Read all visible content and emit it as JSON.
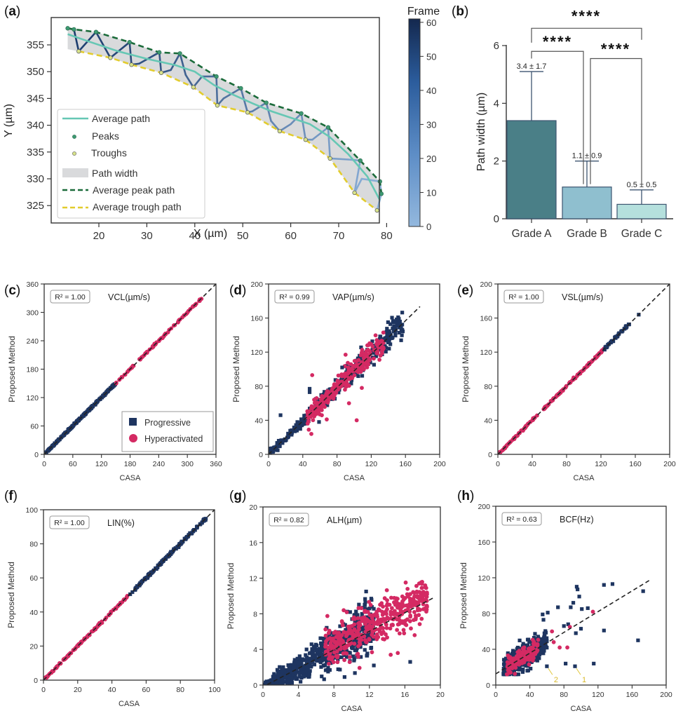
{
  "figure": {
    "panel_labels": [
      "a",
      "b",
      "c",
      "d",
      "e",
      "f",
      "g",
      "h"
    ]
  },
  "chart_data": [
    {
      "id": "a",
      "type": "line",
      "title": "",
      "xlabel": "X (µm)",
      "ylabel": "Y (µm)",
      "xlim": [
        11,
        82
      ],
      "ylim": [
        321.3,
        359.6
      ],
      "xticks": [
        20,
        30,
        40,
        50,
        60,
        70,
        80
      ],
      "yticks": [
        325,
        330,
        335,
        340,
        345,
        350,
        355
      ],
      "grid": false,
      "legend_position": "lower-left",
      "legend": [
        "Average path",
        "Peaks",
        "Troughs",
        "Path width",
        "Average peak path",
        "Average trough path"
      ],
      "colorbar": {
        "label": "Frame",
        "range": [
          0,
          61
        ],
        "ticks": [
          0,
          10,
          20,
          30,
          40,
          50,
          60
        ],
        "colors": [
          "#8fb4dd",
          "#1a3a6b"
        ]
      },
      "colors": {
        "average_path": "#66c7b4",
        "peaks": "#3d9a72",
        "troughs": "#d8e38a",
        "path_width": "#d9dadc",
        "peak_path": "#1b6b3a",
        "trough_path": "#e2cc2e"
      },
      "peaks": [
        [
          13.5,
          358.1
        ],
        [
          14.8,
          357.9
        ],
        [
          19.4,
          357.4
        ],
        [
          26.4,
          355.5
        ],
        [
          32.6,
          353.6
        ],
        [
          36.9,
          353.4
        ],
        [
          44.5,
          349.1
        ],
        [
          49.6,
          346.9
        ],
        [
          54.9,
          344.2
        ],
        [
          62.2,
          342.2
        ],
        [
          67.8,
          339.6
        ],
        [
          74.5,
          333.4
        ],
        [
          78.6,
          329.5
        ],
        [
          78.9,
          327.2
        ]
      ],
      "troughs": [
        [
          15.8,
          353.8
        ],
        [
          22.4,
          352.6
        ],
        [
          26.8,
          351.3
        ],
        [
          33.0,
          349.8
        ],
        [
          39.7,
          347.1
        ],
        [
          44.7,
          343.7
        ],
        [
          51.0,
          342.4
        ],
        [
          57.7,
          338.9
        ],
        [
          63.1,
          337.3
        ],
        [
          68.2,
          333.8
        ],
        [
          73.3,
          327.4
        ],
        [
          78.0,
          324.1
        ]
      ],
      "average_path": [
        [
          13.5,
          357.0
        ],
        [
          18,
          355.6
        ],
        [
          24,
          353.8
        ],
        [
          30,
          352.4
        ],
        [
          36,
          351.2
        ],
        [
          40,
          350.0
        ],
        [
          44,
          347.5
        ],
        [
          48,
          345.7
        ],
        [
          52,
          344.1
        ],
        [
          56,
          342.6
        ],
        [
          60,
          341.4
        ],
        [
          64,
          340.2
        ],
        [
          68,
          337.9
        ],
        [
          72,
          334.6
        ],
        [
          76,
          330.4
        ],
        [
          78.6,
          326.0
        ]
      ],
      "trajectory": [
        [
          13.5,
          358.1
        ],
        [
          14.8,
          357.9
        ],
        [
          15.8,
          353.8
        ],
        [
          19.4,
          357.4
        ],
        [
          22.4,
          352.6
        ],
        [
          26.4,
          355.5
        ],
        [
          26.8,
          351.3
        ],
        [
          28.4,
          351.5
        ],
        [
          32.6,
          353.6
        ],
        [
          33.0,
          349.8
        ],
        [
          35,
          350.3
        ],
        [
          36.9,
          353.4
        ],
        [
          38.1,
          349.4
        ],
        [
          39.7,
          347.1
        ],
        [
          41.5,
          349.1
        ],
        [
          44.5,
          349.1
        ],
        [
          44.7,
          343.7
        ],
        [
          46,
          345
        ],
        [
          49.6,
          346.9
        ],
        [
          51.0,
          342.4
        ],
        [
          52,
          342.6
        ],
        [
          54.9,
          344.2
        ],
        [
          55.9,
          340.8
        ],
        [
          57.7,
          338.9
        ],
        [
          60,
          340.2
        ],
        [
          62.2,
          342.2
        ],
        [
          63.1,
          337.3
        ],
        [
          64.5,
          337.3
        ],
        [
          67.8,
          339.6
        ],
        [
          68.2,
          333.8
        ],
        [
          72,
          333.6
        ],
        [
          74.5,
          333.4
        ],
        [
          73.3,
          327.4
        ],
        [
          74.8,
          330.0
        ],
        [
          78.6,
          329.5
        ],
        [
          78.9,
          327.2
        ],
        [
          78.0,
          324.1
        ]
      ]
    },
    {
      "id": "b",
      "type": "bar",
      "title": "",
      "xlabel": "",
      "ylabel": "Path width (µm)",
      "ylim": [
        0,
        6
      ],
      "yticks": [
        0,
        2,
        4,
        6
      ],
      "categories": [
        "Grade A",
        "Grade B",
        "Grade C"
      ],
      "values": [
        3.4,
        1.1,
        0.5
      ],
      "errors": [
        1.7,
        0.9,
        0.5
      ],
      "value_labels": [
        "3.4 ± 1.7",
        "1.1 ± 0.9",
        "0.5 ± 0.5"
      ],
      "colors": [
        "#4a7f87",
        "#8fbfcf",
        "#b5e0dd"
      ],
      "significance": [
        {
          "pair": [
            "Grade A",
            "Grade B"
          ],
          "label": "****"
        },
        {
          "pair": [
            "Grade B",
            "Grade C"
          ],
          "label": "****"
        },
        {
          "pair": [
            "Grade A",
            "Grade C"
          ],
          "label": "****"
        }
      ]
    },
    {
      "id": "c",
      "type": "scatter",
      "metric": "VCL(µm/s)",
      "r2_label": "R² = 1.00",
      "xlabel": "CASA",
      "ylabel": "Proposed Method",
      "xlim": [
        0,
        360
      ],
      "ylim": [
        0,
        360
      ],
      "xticks": [
        0,
        60,
        120,
        180,
        240,
        300,
        360
      ],
      "yticks": [
        0,
        60,
        120,
        180,
        240,
        300,
        360
      ],
      "legend": [
        "Progressive",
        "Hyperactivated"
      ],
      "legend_position": "lower-right",
      "series": [
        {
          "name": "Progressive",
          "marker": "square",
          "color": "#1e3560",
          "range": [
            2,
            150
          ],
          "spread": 0.8,
          "n": 220
        },
        {
          "name": "Hyperactivated",
          "marker": "circle",
          "color": "#d42a63",
          "range": [
            150,
            333
          ],
          "spread": 1.0,
          "n": 80
        }
      ],
      "fit": {
        "slope": 1.0,
        "intercept": 0,
        "x_range": [
          0,
          360
        ]
      }
    },
    {
      "id": "d",
      "type": "scatter",
      "metric": "VAP(µm/s)",
      "r2_label": "R² = 0.99",
      "xlabel": "CASA",
      "ylabel": "Proposed Method",
      "xlim": [
        0,
        200
      ],
      "ylim": [
        0,
        200
      ],
      "xticks": [
        0,
        40,
        80,
        120,
        160,
        200
      ],
      "yticks": [
        0,
        40,
        80,
        120,
        160,
        200
      ],
      "series": [
        {
          "name": "Progressive",
          "marker": "square",
          "color": "#1e3560",
          "range": [
            1,
            157
          ],
          "spread": 4.5,
          "n": 420
        },
        {
          "name": "Hyperactivated",
          "marker": "circle",
          "color": "#d42a63",
          "range": [
            45,
            135
          ],
          "spread": 5.5,
          "n": 260
        }
      ],
      "outliers": [
        [
          14,
          46,
          "p"
        ],
        [
          48,
          77,
          "p"
        ],
        [
          48,
          73,
          "p"
        ],
        [
          59,
          38,
          "p"
        ],
        [
          86,
          102,
          "p"
        ],
        [
          51,
          93,
          "h"
        ],
        [
          103,
          40,
          "h"
        ],
        [
          94,
          60,
          "h"
        ],
        [
          68,
          41,
          "h"
        ],
        [
          50,
          24,
          "h"
        ],
        [
          47,
          29,
          "h"
        ],
        [
          109,
          78,
          "h"
        ],
        [
          90,
          117,
          "h"
        ]
      ],
      "fit": {
        "slope": 0.98,
        "intercept": 0,
        "x_range": [
          0,
          177
        ]
      }
    },
    {
      "id": "e",
      "type": "scatter",
      "metric": "VSL(µm/s)",
      "r2_label": "R² = 1.00",
      "xlabel": "CASA",
      "ylabel": "Proposed Method",
      "xlim": [
        0,
        200
      ],
      "ylim": [
        0,
        200
      ],
      "xticks": [
        0,
        40,
        80,
        120,
        160,
        200
      ],
      "yticks": [
        0,
        40,
        80,
        120,
        160,
        200
      ],
      "series": [
        {
          "name": "Hyperactivated",
          "marker": "circle",
          "color": "#d42a63",
          "range": [
            2,
            124
          ],
          "spread": 0.6,
          "n": 160
        },
        {
          "name": "Progressive",
          "marker": "square",
          "color": "#1e3560",
          "range": [
            124,
            153
          ],
          "spread": 0.6,
          "n": 40
        }
      ],
      "outliers": [
        [
          164,
          164,
          "p"
        ]
      ],
      "fit": {
        "slope": 1.0,
        "intercept": 0,
        "x_range": [
          0,
          200
        ]
      }
    },
    {
      "id": "f",
      "type": "scatter",
      "metric": "LIN(%)",
      "r2_label": "R² = 1.00",
      "xlabel": "CASA",
      "ylabel": "Proposed Method",
      "xlim": [
        0,
        100
      ],
      "ylim": [
        0,
        100
      ],
      "xticks": [
        0,
        20,
        40,
        60,
        80,
        100
      ],
      "yticks": [
        0,
        20,
        40,
        60,
        80,
        100
      ],
      "series": [
        {
          "name": "Hyperactivated",
          "marker": "circle",
          "color": "#d42a63",
          "range": [
            1,
            50
          ],
          "spread": 0.3,
          "n": 120
        },
        {
          "name": "Progressive",
          "marker": "square",
          "color": "#1e3560",
          "range": [
            50,
            95
          ],
          "spread": 0.35,
          "n": 160
        }
      ],
      "fit": {
        "slope": 1.0,
        "intercept": 0,
        "x_range": [
          0,
          100
        ]
      }
    },
    {
      "id": "g",
      "type": "scatter",
      "metric": "ALH(µm)",
      "r2_label": "R² = 0.82",
      "xlabel": "CASA",
      "ylabel": "Proposed Method",
      "xlim": [
        0,
        20
      ],
      "ylim": [
        0,
        20
      ],
      "xticks": [
        0,
        4,
        8,
        12,
        16,
        20
      ],
      "yticks": [
        0,
        4,
        8,
        12,
        16,
        20
      ],
      "series": [
        {
          "name": "Progressive",
          "marker": "square",
          "color": "#1e3560",
          "range": [
            0.2,
            12.5
          ],
          "spread": 0.9,
          "n": 700
        },
        {
          "name": "Hyperactivated",
          "marker": "circle",
          "color": "#d42a63",
          "range": [
            7,
            18.5
          ],
          "spread": 1.1,
          "n": 420
        }
      ],
      "outliers": [
        [
          16.6,
          2.6,
          "p"
        ],
        [
          12.5,
          2.2,
          "p"
        ],
        [
          9.2,
          0.9,
          "p"
        ],
        [
          17.9,
          10.9,
          "h"
        ],
        [
          18.4,
          10.9,
          "h"
        ],
        [
          16.3,
          10.8,
          "h"
        ],
        [
          15.2,
          3.6,
          "h"
        ],
        [
          14.4,
          3.4,
          "h"
        ],
        [
          9.1,
          8.4,
          "h"
        ],
        [
          17.1,
          5.6,
          "h"
        ]
      ],
      "fit": {
        "slope": 0.52,
        "intercept": -0.2,
        "x_range": [
          0.5,
          19.2
        ]
      }
    },
    {
      "id": "h",
      "type": "scatter",
      "metric": "BCF(Hz)",
      "r2_label": "R² = 0.63",
      "xlabel": "CASA",
      "ylabel": "Proposed Method",
      "xlim": [
        0,
        200
      ],
      "ylim": [
        0,
        200
      ],
      "xticks": [
        0,
        40,
        80,
        120,
        160,
        200
      ],
      "yticks": [
        0,
        40,
        80,
        120,
        160,
        200
      ],
      "series": [
        {
          "name": "Progressive",
          "marker": "square",
          "color": "#1e3560",
          "range": [
            9,
            60
          ],
          "spread": 7,
          "n": 420
        },
        {
          "name": "Hyperactivated",
          "marker": "circle",
          "color": "#d42a63",
          "range": [
            13,
            50
          ],
          "spread": 5,
          "n": 160
        }
      ],
      "outliers": [
        [
          60,
          21,
          "p"
        ],
        [
          93,
          21,
          "p"
        ],
        [
          115,
          24,
          "p"
        ],
        [
          82,
          24,
          "p"
        ],
        [
          167,
          50,
          "p"
        ],
        [
          127,
          61,
          "p"
        ],
        [
          173,
          105,
          "p"
        ],
        [
          127,
          112,
          "p"
        ],
        [
          137,
          113,
          "p"
        ],
        [
          95,
          110,
          "p"
        ],
        [
          96,
          107,
          "p"
        ],
        [
          98,
          99,
          "p"
        ],
        [
          108,
          86,
          "p"
        ],
        [
          101,
          85,
          "p"
        ],
        [
          88,
          87,
          "p"
        ],
        [
          91,
          92,
          "p"
        ],
        [
          73,
          87,
          "p"
        ],
        [
          61,
          81,
          "p"
        ],
        [
          55,
          79,
          "p"
        ],
        [
          56,
          73,
          "p"
        ],
        [
          100,
          63,
          "p"
        ],
        [
          94,
          58,
          "p"
        ],
        [
          85,
          68,
          "p"
        ],
        [
          80,
          66,
          "p"
        ],
        [
          114,
          82,
          "h"
        ],
        [
          87,
          65,
          "h"
        ],
        [
          84,
          42,
          "h"
        ],
        [
          75,
          42,
          "h"
        ],
        [
          68,
          48,
          "h"
        ],
        [
          66,
          60,
          "h"
        ]
      ],
      "annotations": [
        {
          "text": "1",
          "point": [
            93,
            21
          ]
        },
        {
          "text": "2",
          "point": [
            60,
            21
          ]
        }
      ],
      "fit": {
        "slope": 0.58,
        "intercept": 12.5,
        "x_range": [
          0,
          182
        ]
      }
    }
  ]
}
